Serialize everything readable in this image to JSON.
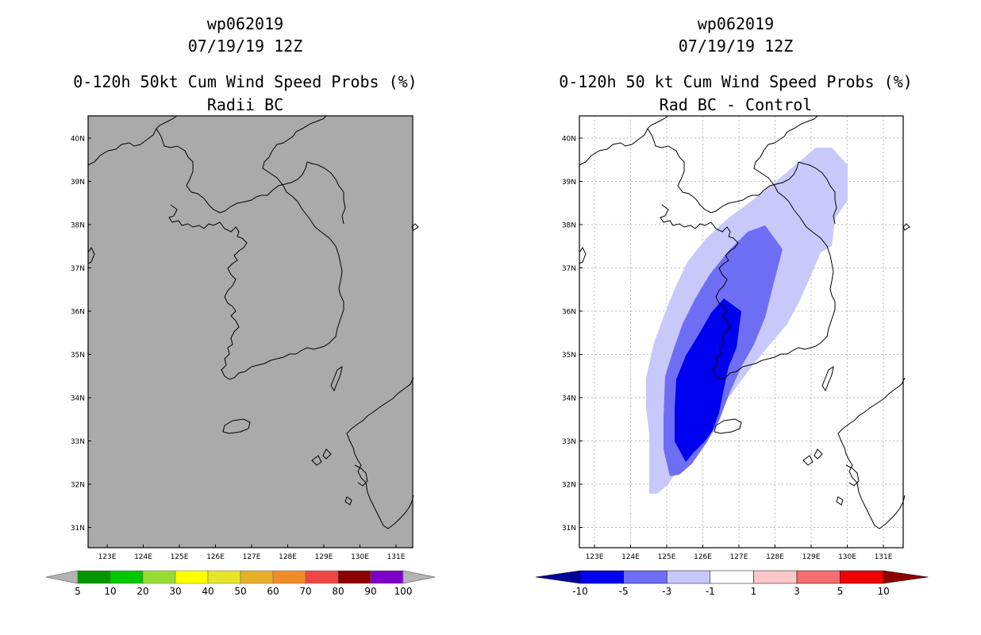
{
  "left_panel": {
    "storm_id": "wp062019",
    "date": "07/19/19 12Z",
    "product": "0-120h 50kt Cum Wind Speed Probs (%)",
    "subtitle": "Radii BC",
    "lat_labels": [
      "40N",
      "39N",
      "38N",
      "37N",
      "36N",
      "35N",
      "34N",
      "33N",
      "32N",
      "31N"
    ],
    "lon_labels": [
      "123E",
      "124E",
      "125E",
      "126E",
      "127E",
      "128E",
      "129E",
      "130E",
      "131E"
    ],
    "colorbar": {
      "labels": [
        "5",
        "10",
        "20",
        "30",
        "40",
        "50",
        "60",
        "70",
        "80",
        "90",
        "100"
      ],
      "colors": [
        "#009600",
        "#00c800",
        "#96dc32",
        "#ffff00",
        "#e6e628",
        "#e6af28",
        "#f08c28",
        "#f04646",
        "#8c0000",
        "#7d00c8"
      ],
      "end_color": "#b4b4b4"
    },
    "map_background": "#aaaaaa"
  },
  "right_panel": {
    "storm_id": "wp062019",
    "date": "07/19/19 12Z",
    "product": "0-120h 50 kt Cum Wind Speed Probs (%)",
    "subtitle": "Rad BC - Control",
    "lat_labels": [
      "40N",
      "39N",
      "38N",
      "37N",
      "36N",
      "35N",
      "34N",
      "33N",
      "32N",
      "31N"
    ],
    "lon_labels": [
      "123E",
      "124E",
      "125E",
      "126E",
      "127E",
      "128E",
      "129E",
      "130E",
      "131E"
    ],
    "colorbar": {
      "labels": [
        "-10",
        "-5",
        "-3",
        "-1",
        "1",
        "3",
        "5",
        "10"
      ],
      "colors": [
        "#0000f0",
        "#6e6ef5",
        "#c8c8fa",
        "#ffffff",
        "#fac8c8",
        "#f56e6e",
        "#f00000"
      ],
      "left_end_color": "#00009b",
      "right_end_color": "#8c0000"
    },
    "contour_colors": {
      "minus1_to_minus3": "#c8c8fa",
      "minus3_to_minus5": "#6e6ef5",
      "below_minus5": "#0000f0"
    }
  }
}
